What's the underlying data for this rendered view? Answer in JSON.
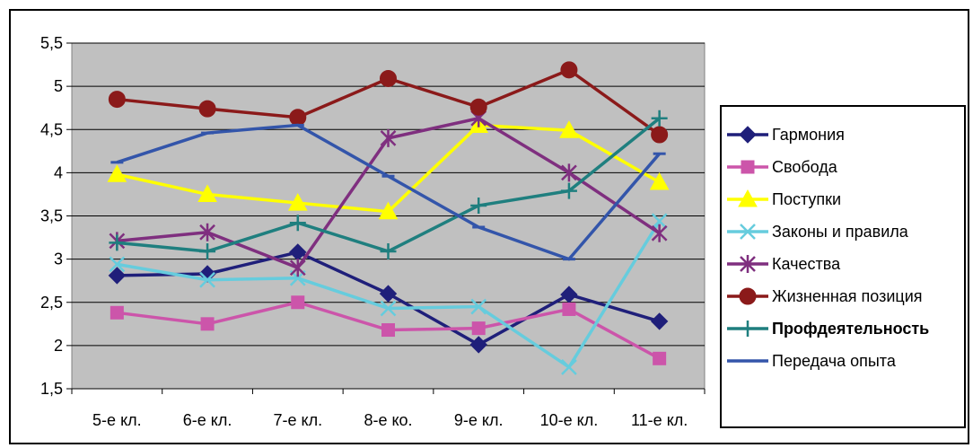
{
  "chart_data": {
    "type": "line",
    "categories": [
      "5-е кл.",
      "6-е кл.",
      "7-е кл.",
      "8-е ко.",
      "9-е кл.",
      "10-е кл.",
      "11-е кл."
    ],
    "ylim": [
      1.5,
      5.5
    ],
    "yticks": [
      "1,5",
      "2",
      "2,5",
      "3",
      "3,5",
      "4",
      "4,5",
      "5",
      "5,5"
    ],
    "grid": true,
    "legend_position": "right",
    "plot_background": "#c0c0c0",
    "series": [
      {
        "name": "Гармония",
        "color": "#1f1f7a",
        "marker": "diamond",
        "values": [
          2.81,
          2.83,
          3.08,
          2.6,
          2.01,
          2.59,
          2.28
        ]
      },
      {
        "name": "Свобода",
        "color": "#cc55aa",
        "marker": "square",
        "values": [
          2.38,
          2.25,
          2.5,
          2.18,
          2.2,
          2.42,
          1.85
        ]
      },
      {
        "name": "Поступки",
        "color": "#ffff00",
        "marker": "triangle",
        "values": [
          3.98,
          3.75,
          3.65,
          3.55,
          4.55,
          4.49,
          3.89
        ]
      },
      {
        "name": "Законы и правила",
        "color": "#66ccdd",
        "marker": "x",
        "values": [
          2.94,
          2.76,
          2.78,
          2.43,
          2.45,
          1.75,
          3.44
        ]
      },
      {
        "name": "Качества",
        "color": "#7f2f7f",
        "marker": "star",
        "values": [
          3.21,
          3.31,
          2.9,
          4.4,
          4.63,
          4.0,
          3.3
        ]
      },
      {
        "name": "Жизненная позиция",
        "color": "#8b1a1a",
        "marker": "circle",
        "values": [
          4.85,
          4.74,
          4.64,
          5.09,
          4.76,
          5.19,
          4.44
        ]
      },
      {
        "name": "Профдеятельность",
        "color": "#1f7f7f",
        "marker": "plus",
        "legend_bold": true,
        "values": [
          3.19,
          3.09,
          3.42,
          3.09,
          3.62,
          3.79,
          4.63
        ]
      },
      {
        "name": "Передача опыта",
        "color": "#3355aa",
        "marker": "dash",
        "values": [
          4.12,
          4.46,
          4.55,
          3.96,
          3.37,
          3.0,
          4.22
        ]
      }
    ]
  }
}
